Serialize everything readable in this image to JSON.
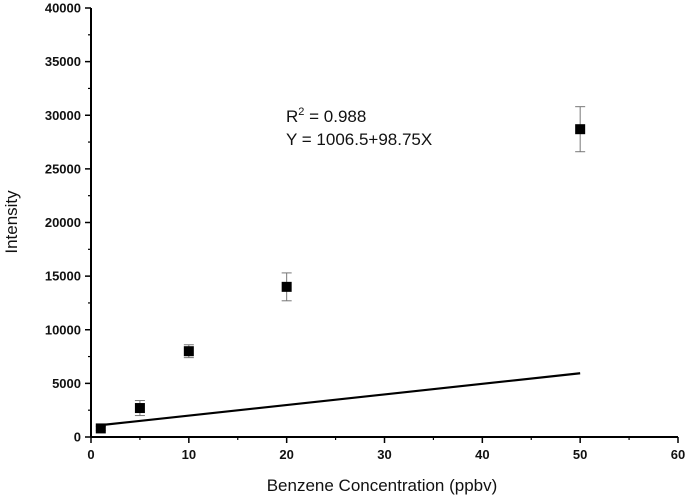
{
  "chart_data": {
    "type": "scatter",
    "xlabel": "Benzene Concentration (ppbv)",
    "ylabel": "Intensity",
    "xlim": [
      0,
      60
    ],
    "ylim": [
      0,
      40000
    ],
    "x_ticks": [
      "0",
      "10",
      "20",
      "30",
      "40",
      "50",
      "60"
    ],
    "y_ticks": [
      "0",
      "5000",
      "10000",
      "15000",
      "20000",
      "25000",
      "30000",
      "35000",
      "40000"
    ],
    "series": [
      {
        "points": [
          {
            "x": 1,
            "y": 800,
            "err": 200
          },
          {
            "x": 5,
            "y": 2700,
            "err": 700
          },
          {
            "x": 10,
            "y": 8000,
            "err": 600
          },
          {
            "x": 20,
            "y": 14000,
            "err": 1300
          },
          {
            "x": 50,
            "y": 28700,
            "err": 2100
          }
        ]
      }
    ],
    "fit": {
      "intercept": 1006.5,
      "slope": 98.75,
      "x_range": [
        1,
        50
      ]
    },
    "annotations": {
      "r2_prefix": "R",
      "r2_sup": "2",
      "r2_value": " = 0.988",
      "equation": "Y = 1006.5+98.75X"
    },
    "grid": false,
    "colors": {
      "marker": "#000000",
      "line": "#000000",
      "error_bar": "#777777"
    }
  }
}
